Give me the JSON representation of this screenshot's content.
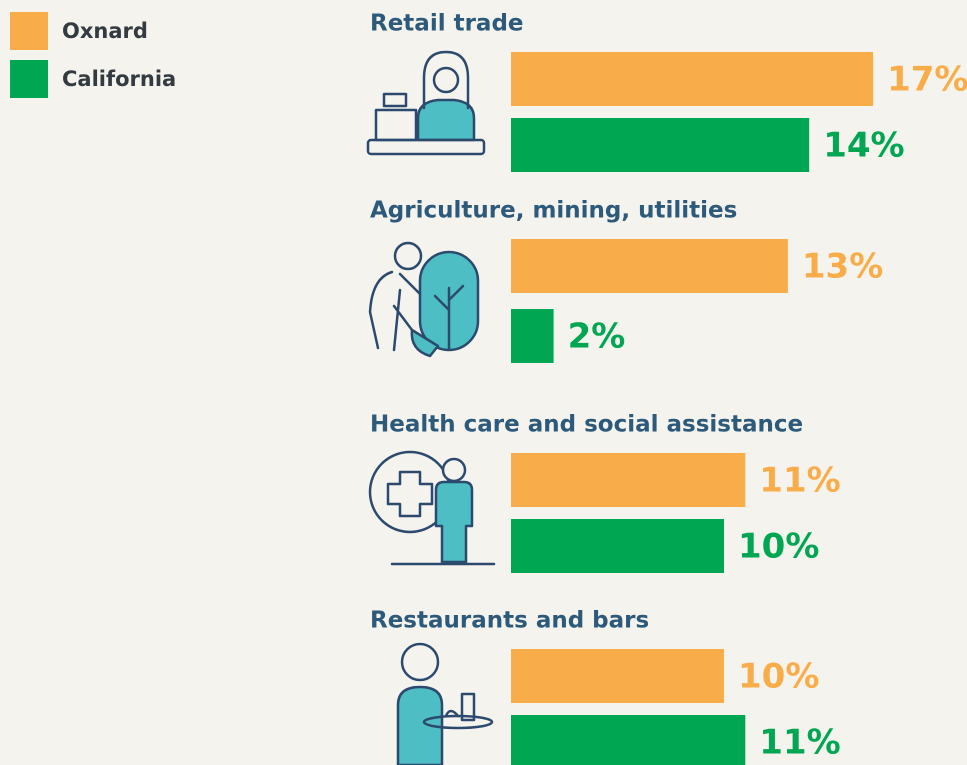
{
  "chart_data": {
    "type": "bar",
    "orientation": "horizontal",
    "categories": [
      "Retail trade",
      "Agriculture, mining, utilities",
      "Health care and social assistance",
      "Restaurants and bars"
    ],
    "series": [
      {
        "name": "Oxnard",
        "color": "#f9ad4a",
        "values": [
          17,
          13,
          11,
          10
        ],
        "value_labels": [
          "17%",
          "13%",
          "11%",
          "10%"
        ]
      },
      {
        "name": "California",
        "color": "#00a651",
        "values": [
          14,
          2,
          10,
          11
        ],
        "value_labels": [
          "14%",
          "2%",
          "10%",
          "11%"
        ]
      }
    ]
  }
}
